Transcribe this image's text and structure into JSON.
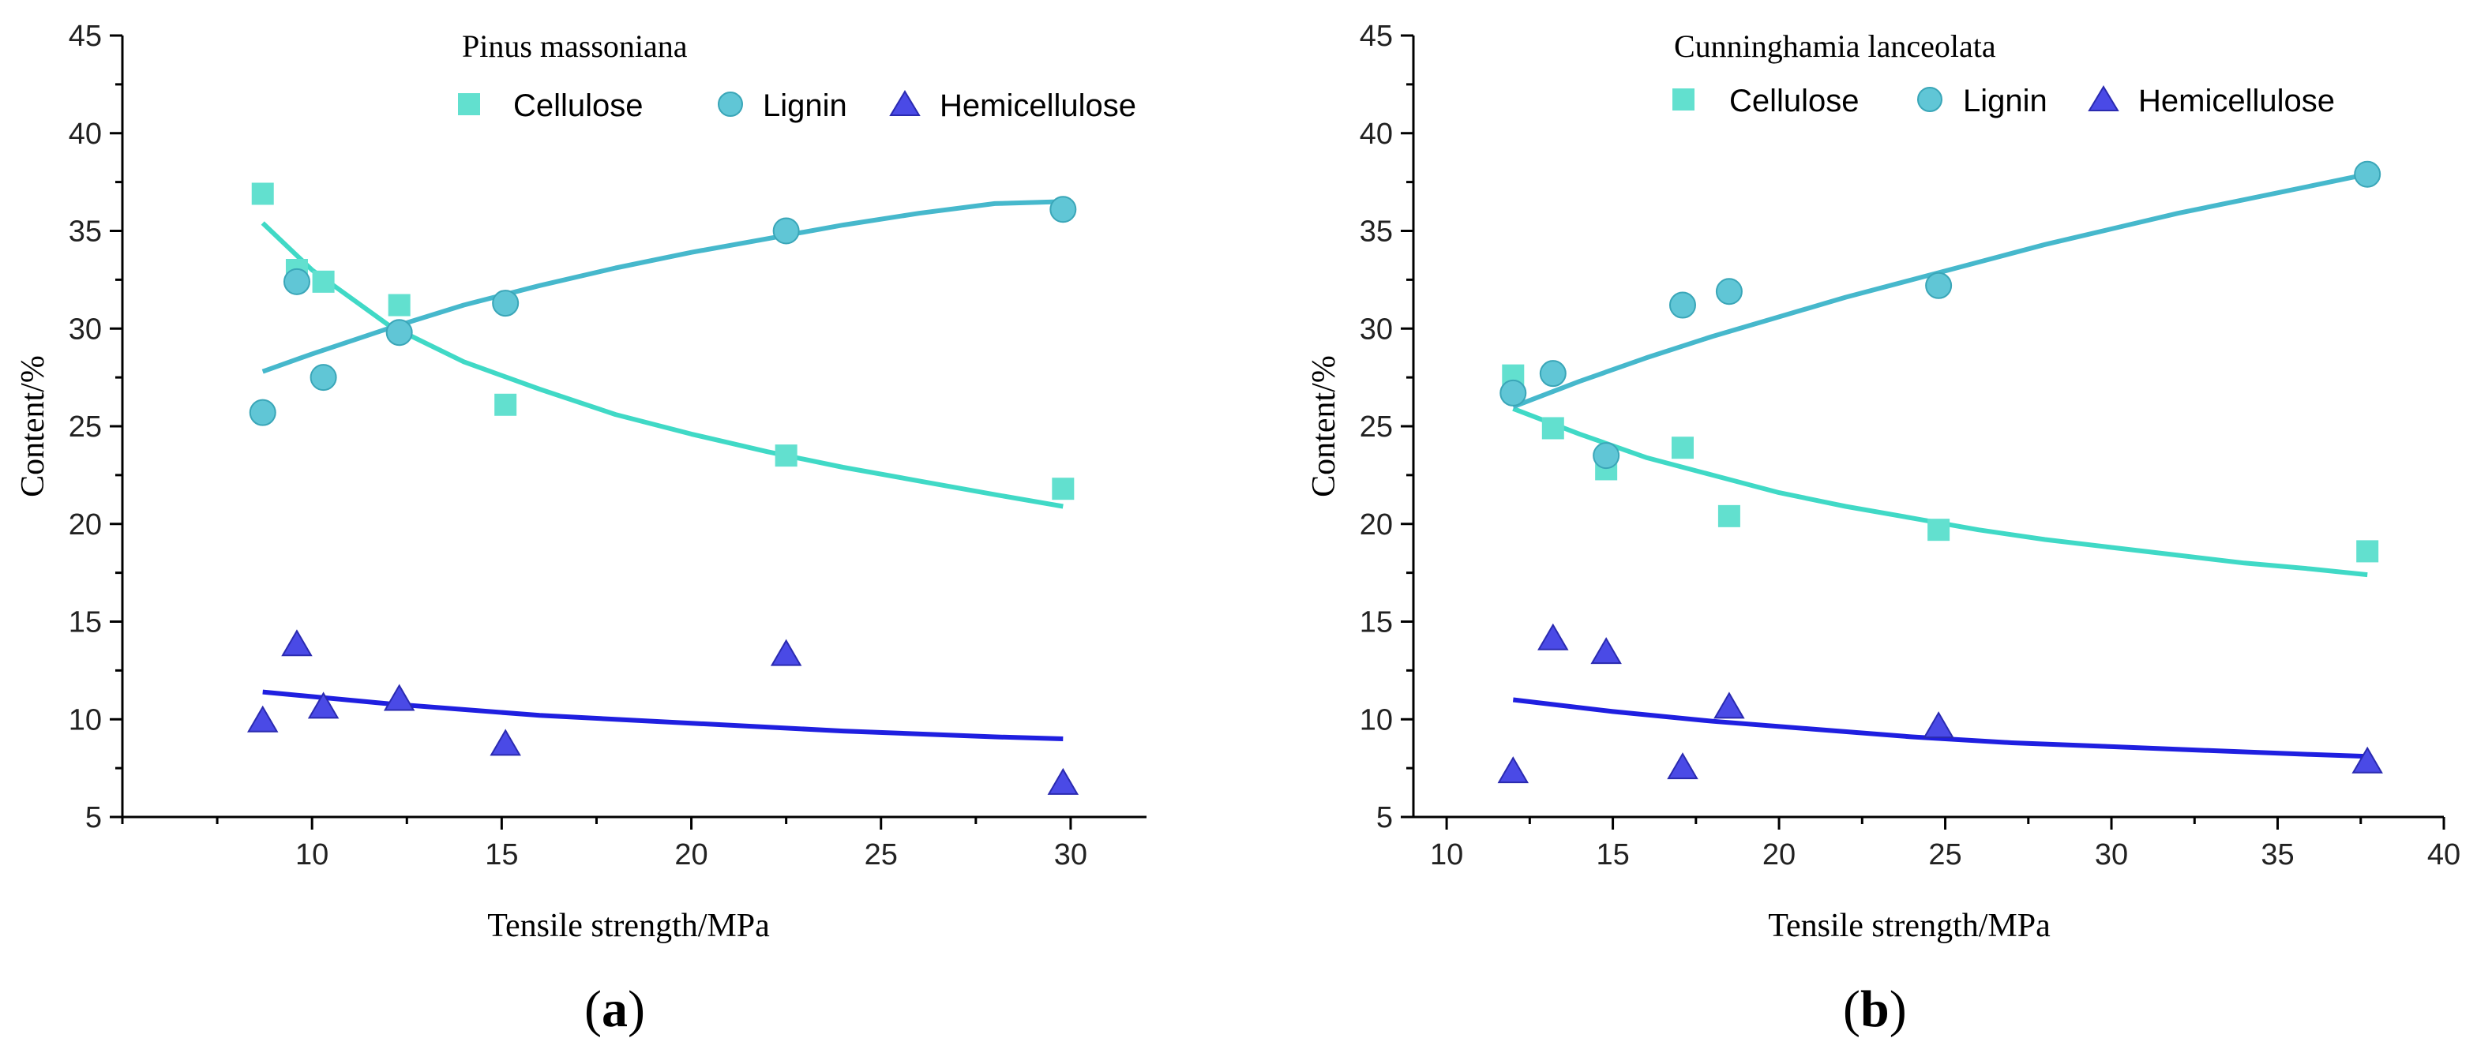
{
  "colors": {
    "cellulose": "#62e0cf",
    "cellulose_line": "#40d9c6",
    "lignin": "#60c6d6",
    "lignin_stroke": "#3aa6b8",
    "lignin_line": "#46b8cc",
    "hemicellulose": "#4a4ae6",
    "hemicellulose_line": "#1f1fe0"
  },
  "chart_data": [
    {
      "type": "scatter",
      "panel_label": "a",
      "title": "Pinus massoniana",
      "xlabel": "Tensile strength/MPa",
      "ylabel": "Content/%",
      "xlim": [
        5,
        32
      ],
      "ylim": [
        5,
        45
      ],
      "xticks": [
        10,
        15,
        20,
        25,
        30
      ],
      "yticks": [
        5,
        10,
        15,
        20,
        25,
        30,
        35,
        40,
        45
      ],
      "legend_position": "top",
      "series": [
        {
          "name": "Cellulose",
          "marker": "square",
          "x": [
            8.7,
            9.6,
            10.3,
            12.3,
            15.1,
            22.5,
            29.8
          ],
          "y": [
            36.9,
            33.0,
            32.4,
            31.2,
            26.1,
            23.5,
            21.8
          ],
          "fit": {
            "x": [
              8.7,
              10,
              12,
              14,
              16,
              18,
              20,
              22,
              24,
              26,
              28,
              29.8
            ],
            "y": [
              35.4,
              33.0,
              30.2,
              28.3,
              26.9,
              25.6,
              24.6,
              23.7,
              22.9,
              22.2,
              21.5,
              20.9
            ]
          }
        },
        {
          "name": "Lignin",
          "marker": "circle",
          "x": [
            8.7,
            9.6,
            10.3,
            12.3,
            15.1,
            22.5,
            29.8
          ],
          "y": [
            25.7,
            32.4,
            27.5,
            29.8,
            31.3,
            35.0,
            36.1
          ],
          "fit": {
            "x": [
              8.7,
              10,
              12,
              14,
              16,
              18,
              20,
              22,
              24,
              26,
              28,
              29.8
            ],
            "y": [
              27.8,
              28.7,
              30.0,
              31.2,
              32.2,
              33.1,
              33.9,
              34.6,
              35.3,
              35.9,
              36.4,
              36.5
            ]
          }
        },
        {
          "name": "Hemicellulose",
          "marker": "triangle",
          "x": [
            8.7,
            9.6,
            10.3,
            12.3,
            15.1,
            22.5,
            29.8
          ],
          "y": [
            9.9,
            13.8,
            10.6,
            11.0,
            8.7,
            13.3,
            6.7
          ],
          "fit": {
            "x": [
              8.7,
              12,
              16,
              20,
              24,
              28,
              29.8
            ],
            "y": [
              11.4,
              10.8,
              10.2,
              9.8,
              9.4,
              9.1,
              9.0
            ]
          }
        }
      ]
    },
    {
      "type": "scatter",
      "panel_label": "b",
      "title": "Cunninghamia lanceolata",
      "xlabel": "Tensile strength/MPa",
      "ylabel": "Content/%",
      "xlim": [
        9,
        40
      ],
      "ylim": [
        5,
        45
      ],
      "xticks": [
        10,
        15,
        20,
        25,
        30,
        35,
        40
      ],
      "yticks": [
        5,
        10,
        15,
        20,
        25,
        30,
        35,
        40,
        45
      ],
      "legend_position": "top",
      "series": [
        {
          "name": "Cellulose",
          "marker": "square",
          "x": [
            12.0,
            13.2,
            14.8,
            17.1,
            18.5,
            24.8,
            37.7
          ],
          "y": [
            27.6,
            24.9,
            22.8,
            23.9,
            20.4,
            19.7,
            18.6
          ],
          "fit": {
            "x": [
              12,
              14,
              16,
              18,
              20,
              22,
              24,
              26,
              28,
              30,
              32,
              34,
              36,
              37.7
            ],
            "y": [
              25.9,
              24.6,
              23.4,
              22.5,
              21.6,
              20.9,
              20.3,
              19.7,
              19.2,
              18.8,
              18.4,
              18.0,
              17.7,
              17.4
            ]
          }
        },
        {
          "name": "Lignin",
          "marker": "circle",
          "x": [
            12.0,
            13.2,
            14.8,
            17.1,
            18.5,
            24.8,
            37.7
          ],
          "y": [
            26.7,
            27.7,
            23.5,
            31.2,
            31.9,
            32.2,
            37.9
          ],
          "fit": {
            "x": [
              12,
              14,
              16,
              18,
              20,
              22,
              24,
              26,
              28,
              30,
              32,
              34,
              36,
              37.7
            ],
            "y": [
              26.0,
              27.3,
              28.5,
              29.6,
              30.6,
              31.6,
              32.5,
              33.4,
              34.3,
              35.1,
              35.9,
              36.6,
              37.3,
              37.9
            ]
          }
        },
        {
          "name": "Hemicellulose",
          "marker": "triangle",
          "x": [
            12.0,
            13.2,
            14.8,
            17.1,
            18.5,
            24.8,
            37.7
          ],
          "y": [
            7.3,
            14.1,
            13.4,
            7.5,
            10.6,
            9.6,
            7.8
          ],
          "fit": {
            "x": [
              12,
              15,
              18,
              21,
              24,
              27,
              30,
              33,
              36,
              37.7
            ],
            "y": [
              11.0,
              10.4,
              9.9,
              9.5,
              9.1,
              8.8,
              8.6,
              8.4,
              8.2,
              8.1
            ]
          }
        }
      ]
    }
  ]
}
